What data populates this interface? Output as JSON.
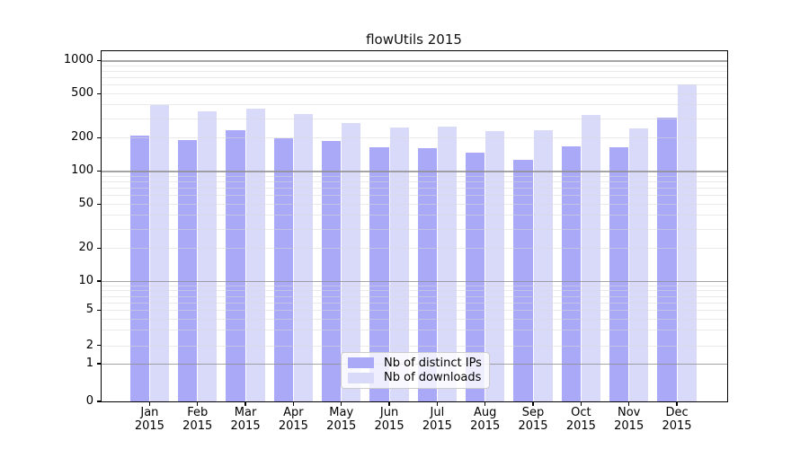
{
  "colors": {
    "distinct_ips_bar": "#a9a9f7",
    "downloads_bar": "#d9d9f9",
    "major_gridline": "#8f8f8f",
    "minor_gridline": "#d9d9d9",
    "spine": "#000000",
    "legend_border": "#cccccc"
  },
  "chart_data": {
    "type": "bar",
    "title": "flowUtils 2015",
    "categories": [
      "Jan 2015",
      "Feb 2015",
      "Mar 2015",
      "Apr 2015",
      "May 2015",
      "Jun 2015",
      "Jul 2015",
      "Aug 2015",
      "Sep 2015",
      "Oct 2015",
      "Nov 2015",
      "Dec 2015"
    ],
    "series": [
      {
        "name": "Nb of distinct IPs",
        "color": "#a9a9f7",
        "values": [
          210,
          189,
          234,
          196,
          187,
          163,
          160,
          147,
          127,
          168,
          163,
          305
        ]
      },
      {
        "name": "Nb of downloads",
        "color": "#d9d9f9",
        "values": [
          390,
          345,
          368,
          324,
          270,
          248,
          252,
          228,
          232,
          322,
          240,
          600
        ]
      }
    ],
    "xlabel": "",
    "ylabel": "",
    "yscale": "log with zero baseline",
    "y_ticks": [
      0,
      1,
      2,
      5,
      10,
      20,
      50,
      100,
      200,
      500,
      1000
    ],
    "ylim": [
      0,
      1000
    ],
    "grid": "horizontal log major+minor, drawn over translucent bars",
    "legend_position": "lower center"
  }
}
